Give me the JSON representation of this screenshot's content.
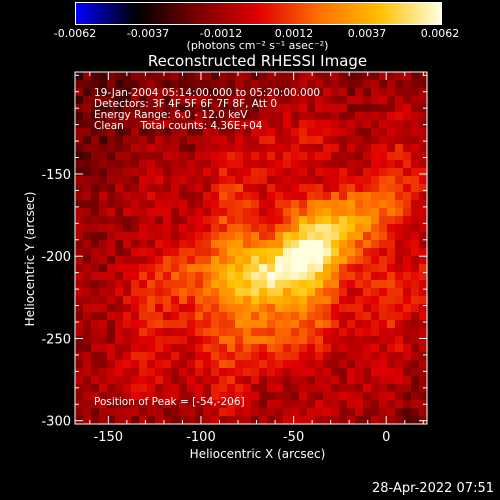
{
  "colorbar": {
    "gradient": [
      "#0000ff",
      "#000000",
      "#7a0000",
      "#e00000",
      "#ff7000",
      "#ffc000",
      "#ffffe0"
    ],
    "tick_labels": [
      "-0.0062",
      "-0.0037",
      "-0.0012",
      "0.0012",
      "0.0037",
      "0.0062"
    ],
    "units": "(photons cm⁻² s⁻¹ asec⁻²)"
  },
  "chart_data": {
    "type": "heatmap",
    "title": "Reconstructed RHESSI Image",
    "xlabel": "Heliocentric X (arcsec)",
    "ylabel": "Heliocentric Y (arcsec)",
    "xlim": [
      -168,
      22
    ],
    "ylim": [
      -302,
      -88
    ],
    "xticks": [
      -150,
      -100,
      -50,
      0
    ],
    "xtick_labels": [
      "-150",
      "-100",
      "-50",
      "0"
    ],
    "yticks": [
      -150,
      -200,
      -250,
      -300
    ],
    "ytick_labels": [
      "-150",
      "-200",
      "-250",
      "-300"
    ],
    "peak": [
      -54,
      -206
    ],
    "color_range": [
      -0.0062,
      0.0062
    ]
  },
  "annotations": {
    "time": "19-Jan-2004 05:14:00.000 to 05:20:00.000",
    "detectors": "Detectors: 3F 4F 5F 6F 7F 8F, Att 0",
    "energy": "Energy Range: 6.0 - 12.0 keV",
    "clean": "Clean     Total counts: 4.36E+04",
    "peak": "Position of Peak = [-54,-206]"
  },
  "timestamp": "28-Apr-2022 07:51"
}
